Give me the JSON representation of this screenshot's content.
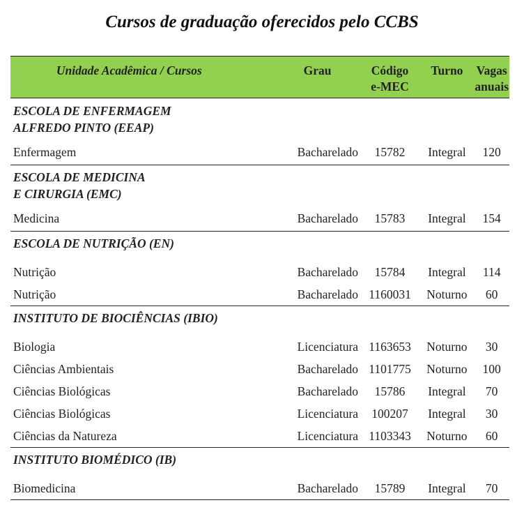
{
  "title": "Cursos de graduação oferecidos pelo CCBS",
  "header": {
    "unit": "Unidade Acadêmica / Cursos",
    "grau": "Grau",
    "codigo_line1": "Código",
    "codigo_line2": "e-MEC",
    "turno": "Turno",
    "vagas_line1": "Vagas",
    "vagas_line2": "anuais"
  },
  "header_color": "#92d050",
  "sections": [
    {
      "name_line1": "ESCOLA DE ENFERMAGEM",
      "name_line2": "ALFREDO PINTO (EEAP)",
      "courses": [
        {
          "curso": "Enfermagem",
          "grau": "Bacharelado",
          "codigo": "15782",
          "turno": "Integral",
          "vagas": "120"
        }
      ]
    },
    {
      "name_line1": "ESCOLA DE MEDICINA",
      "name_line2": "E CIRURGIA (EMC)",
      "courses": [
        {
          "curso": "Medicina",
          "grau": "Bacharelado",
          "codigo": "15783",
          "turno": "Integral",
          "vagas": "154"
        }
      ]
    },
    {
      "name_line1": "ESCOLA DE NUTRIÇÃO (EN)",
      "courses": [
        {
          "curso": "Nutrição",
          "grau": "Bacharelado",
          "codigo": "15784",
          "turno": "Integral",
          "vagas": "114"
        },
        {
          "curso": "Nutrição",
          "grau": "Bacharelado",
          "codigo": "1160031",
          "turno": "Noturno",
          "vagas": "60"
        }
      ]
    },
    {
      "name_line1": "INSTITUTO DE BIOCIÊNCIAS (IBIO)",
      "courses": [
        {
          "curso": "Biologia",
          "grau": "Licenciatura",
          "codigo": "1163653",
          "turno": "Noturno",
          "vagas": "30"
        },
        {
          "curso": "Ciências Ambientais",
          "grau": "Bacharelado",
          "codigo": "1101775",
          "turno": "Noturno",
          "vagas": "100"
        },
        {
          "curso": "Ciências Biológicas",
          "grau": "Bacharelado",
          "codigo": "15786",
          "turno": "Integral",
          "vagas": "70"
        },
        {
          "curso": "Ciências Biológicas",
          "grau": "Licenciatura",
          "codigo": "100207",
          "turno": "Integral",
          "vagas": "30"
        },
        {
          "curso": "Ciências da Natureza",
          "grau": "Licenciatura",
          "codigo": "1103343",
          "turno": "Noturno",
          "vagas": "60"
        }
      ]
    },
    {
      "name_line1": "INSTITUTO BIOMÉDICO (IB)",
      "courses": [
        {
          "curso": "Biomedicina",
          "grau": "Bacharelado",
          "codigo": "15789",
          "turno": "Integral",
          "vagas": "70"
        }
      ]
    }
  ]
}
